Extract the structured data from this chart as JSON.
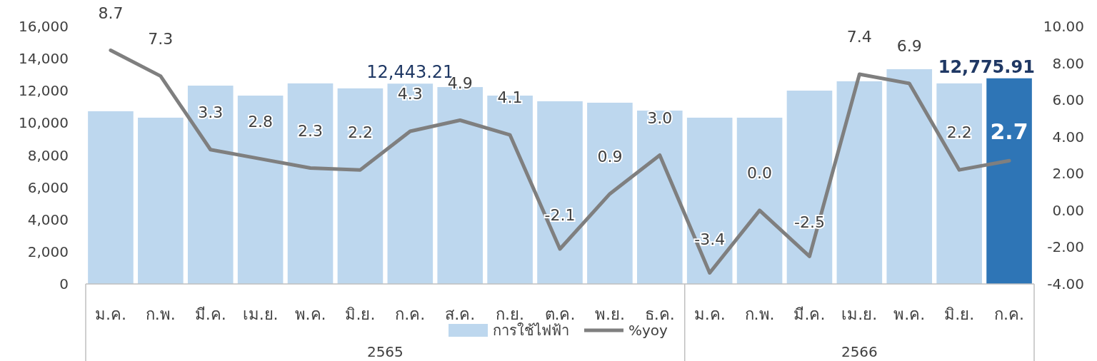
{
  "chart_data": {
    "type": "bar",
    "categories": [
      "ม.ค.",
      "ก.พ.",
      "มี.ค.",
      "เม.ย.",
      "พ.ค.",
      "มิ.ย.",
      "ก.ค.",
      "ส.ค.",
      "ก.ย.",
      "ต.ค.",
      "พ.ย.",
      "ธ.ค.",
      "ม.ค.",
      "ก.พ.",
      "มี.ค.",
      "เม.ย.",
      "พ.ค.",
      "มิ.ย.",
      "ก.ค."
    ],
    "series": [
      {
        "name": "การใช้ไฟฟ้า",
        "color": "#bdd7ee",
        "colors": [
          "#bdd7ee",
          "#bdd7ee",
          "#bdd7ee",
          "#bdd7ee",
          "#bdd7ee",
          "#bdd7ee",
          "#bdd7ee",
          "#bdd7ee",
          "#bdd7ee",
          "#bdd7ee",
          "#bdd7ee",
          "#bdd7ee",
          "#bdd7ee",
          "#bdd7ee",
          "#bdd7ee",
          "#bdd7ee",
          "#bdd7ee",
          "#bdd7ee",
          "#2e75b6"
        ],
        "values": [
          10730,
          10330,
          12320,
          11700,
          12460,
          12150,
          12443.21,
          12230,
          11700,
          11350,
          11260,
          10770,
          10330,
          10330,
          12010,
          12590,
          13340,
          12460,
          12775.91
        ],
        "value_labels": [
          null,
          null,
          null,
          null,
          null,
          null,
          "12,443.21",
          null,
          null,
          null,
          null,
          null,
          null,
          null,
          null,
          null,
          null,
          null,
          "12,775.91"
        ]
      },
      {
        "name": "%yoy",
        "type": "line",
        "axis": "y2",
        "color": "#7f7f7f",
        "values": [
          8.7,
          7.3,
          3.3,
          2.8,
          2.3,
          2.2,
          4.3,
          4.9,
          4.1,
          -2.1,
          0.9,
          3.0,
          -3.4,
          0.0,
          -2.5,
          7.4,
          6.9,
          2.2,
          2.7
        ],
        "value_labels": [
          "8.7",
          "7.3",
          "3.3",
          "2.8",
          "2.3",
          "2.2",
          "4.3",
          "4.9",
          "4.1",
          "-2.1",
          "0.9",
          "3.0",
          "-3.4",
          "0.0",
          "-2.5",
          "7.4",
          "6.9",
          "2.2",
          "2.7"
        ]
      }
    ],
    "ylim": [
      0,
      16000
    ],
    "yticks": [
      {
        "value": 0,
        "label": "0"
      },
      {
        "value": 2000,
        "label": "2,000"
      },
      {
        "value": 4000,
        "label": "4,000"
      },
      {
        "value": 6000,
        "label": "6,000"
      },
      {
        "value": 8000,
        "label": "8,000"
      },
      {
        "value": 10000,
        "label": "10,000"
      },
      {
        "value": 12000,
        "label": "12,000"
      },
      {
        "value": 14000,
        "label": "14,000"
      },
      {
        "value": 16000,
        "label": "16,000"
      }
    ],
    "y2lim": [
      -4,
      10
    ],
    "y2ticks": [
      {
        "value": -4,
        "label": "-4.00"
      },
      {
        "value": -2,
        "label": "-2.00"
      },
      {
        "value": 0,
        "label": "0.00"
      },
      {
        "value": 2,
        "label": "2.00"
      },
      {
        "value": 4,
        "label": "4.00"
      },
      {
        "value": 6,
        "label": "6.00"
      },
      {
        "value": 8,
        "label": "8.00"
      },
      {
        "value": 10,
        "label": "10.00"
      }
    ],
    "annotations": [
      "2565",
      "2566"
    ],
    "legend": "bottom",
    "grid": false,
    "marker": "none",
    "line_style": "solid"
  }
}
